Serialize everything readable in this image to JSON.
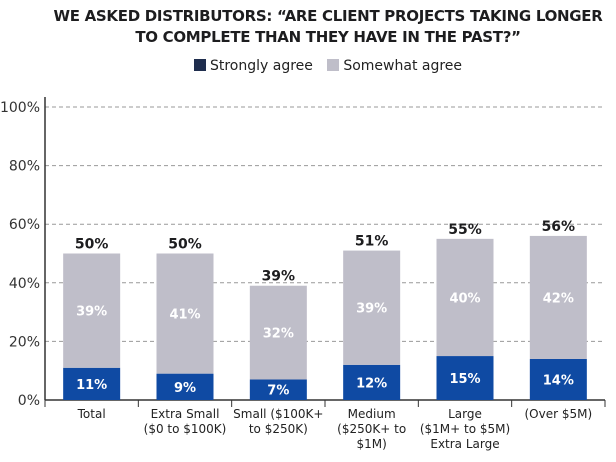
{
  "chart_data": {
    "type": "bar",
    "stacked": true,
    "title": [
      "WE ASKED DISTRIBUTORS: “ARE CLIENT PROJECTS TAKING LONGER",
      "TO COMPLETE THAN THEY HAVE IN THE PAST?”"
    ],
    "categories": [
      [
        "Total"
      ],
      [
        "Extra Small",
        "($0 to $100K)"
      ],
      [
        "Small ($100K+",
        "to $250K)"
      ],
      [
        "Medium",
        "($250K+ to",
        "$1M)"
      ],
      [
        "Large",
        "($1M+ to $5M)",
        "Extra Large"
      ],
      [
        "(Over $5M)"
      ]
    ],
    "series": [
      {
        "name": "Strongly agree",
        "values": [
          11,
          9,
          7,
          12,
          15,
          14
        ],
        "color": "#0f4aa3",
        "legend_color": "#1f2e4e"
      },
      {
        "name": "Somewhat agree",
        "values": [
          39,
          41,
          32,
          39,
          40,
          42
        ],
        "color": "#bfbec9",
        "legend_color": "#bfbec9"
      }
    ],
    "totals": [
      50,
      50,
      39,
      51,
      55,
      56
    ],
    "yticks": [
      "0%",
      "20%",
      "40%",
      "60%",
      "80%",
      "100%"
    ],
    "ylim": [
      0,
      100
    ],
    "grid": "dashed horizontal",
    "legend_placement": "top"
  }
}
